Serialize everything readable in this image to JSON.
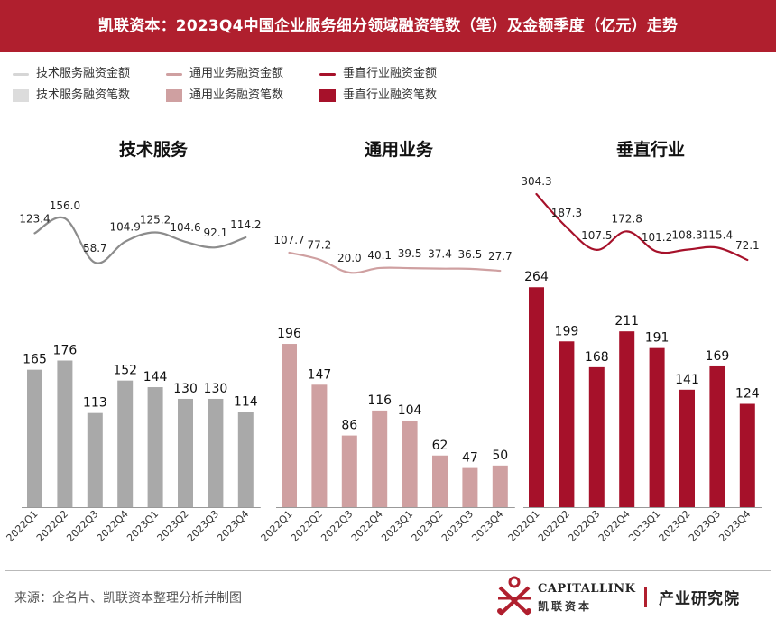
{
  "title": "凯联资本：2023Q4中国企业服务细分领域融资笔数（笔）及金额季度（亿元）走势",
  "legend": [
    {
      "label": "技术服务融资金额",
      "kind": "line",
      "color": "#d6d6d6"
    },
    {
      "label": "技术服务融资笔数",
      "kind": "bar",
      "color": "#dcdcdc"
    },
    {
      "label": "通用业务融资金额",
      "kind": "line",
      "color": "#cfa0a1"
    },
    {
      "label": "通用业务融资笔数",
      "kind": "bar",
      "color": "#cfa0a1"
    },
    {
      "label": "垂直行业融资金额",
      "kind": "line",
      "color": "#a6112a"
    },
    {
      "label": "垂直行业融资笔数",
      "kind": "bar",
      "color": "#a6112a"
    }
  ],
  "chart_data": [
    {
      "type": "bar",
      "title": "技术服务",
      "categories": [
        "2022Q1",
        "2022Q2",
        "2022Q3",
        "2022Q4",
        "2023Q1",
        "2023Q2",
        "2023Q3",
        "2023Q4"
      ],
      "series": [
        {
          "name": "技术服务融资笔数",
          "type": "bar",
          "color": "#a9a9a9",
          "values": [
            165,
            176,
            113,
            152,
            144,
            130,
            130,
            114
          ]
        },
        {
          "name": "技术服务融资金额",
          "type": "line",
          "color": "#8c8c8c",
          "values": [
            123.4,
            156.0,
            58.7,
            104.9,
            125.2,
            104.6,
            92.1,
            114.2
          ]
        }
      ]
    },
    {
      "type": "bar",
      "title": "通用业务",
      "categories": [
        "2022Q1",
        "2022Q2",
        "2022Q3",
        "2022Q4",
        "2023Q1",
        "2023Q2",
        "2023Q3",
        "2023Q4"
      ],
      "series": [
        {
          "name": "通用业务融资笔数",
          "type": "bar",
          "color": "#cfa0a1",
          "values": [
            196,
            147,
            86,
            116,
            104,
            62,
            47,
            50
          ]
        },
        {
          "name": "通用业务融资金额",
          "type": "line",
          "color": "#cfa0a1",
          "values": [
            107.7,
            77.2,
            20.0,
            40.1,
            39.5,
            37.4,
            36.5,
            27.7
          ]
        }
      ]
    },
    {
      "type": "bar",
      "title": "垂直行业",
      "categories": [
        "2022Q1",
        "2022Q2",
        "2022Q3",
        "2022Q4",
        "2023Q1",
        "2023Q2",
        "2023Q3",
        "2023Q4"
      ],
      "series": [
        {
          "name": "垂直行业融资笔数",
          "type": "bar",
          "color": "#a6112a",
          "values": [
            264,
            199,
            168,
            211,
            191,
            141,
            169,
            124
          ]
        },
        {
          "name": "垂直行业融资金额",
          "type": "line",
          "color": "#a6112a",
          "values": [
            304.3,
            187.3,
            107.5,
            172.8,
            101.2,
            108.3,
            115.4,
            72.1
          ]
        }
      ]
    }
  ],
  "footer": {
    "source": "来源：企名片、凯联资本整理分析并制图",
    "logo_en": "CAPITALLINK",
    "logo_cn": "凯联资本",
    "dept": "产业研究院"
  }
}
